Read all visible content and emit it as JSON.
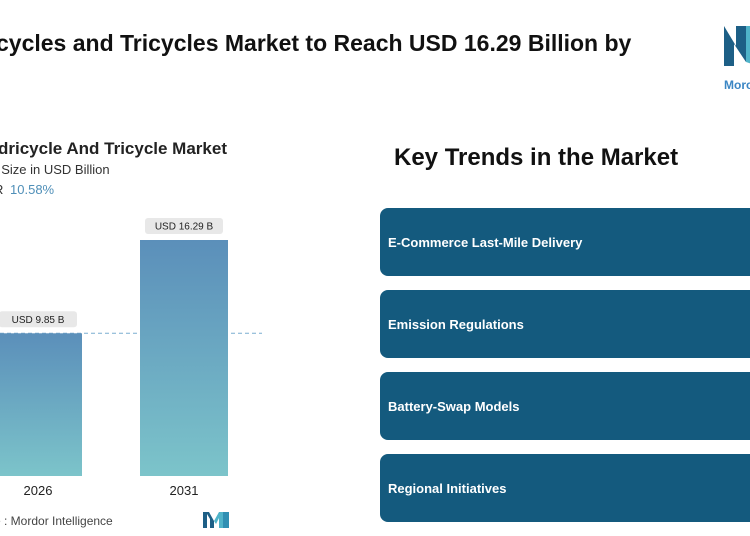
{
  "headline": "cycles and Tricycles Market to Reach USD 16.29 Billion by",
  "logo": {
    "text": "Morc"
  },
  "chart": {
    "title": "dricycle And Tricycle Market",
    "subtitle": "t Size in USD Billion",
    "cagr_label": "R",
    "cagr_value": "10.58%"
  },
  "chart_data": {
    "type": "bar",
    "title": "dricycle And Tricycle Market",
    "ylabel": "t Size in USD Billion",
    "categories": [
      "2026",
      "2031"
    ],
    "values": [
      9.85,
      16.29
    ],
    "data_labels": [
      "USD 9.85 B",
      "USD 16.29 B"
    ],
    "ylim": [
      0,
      16.29
    ],
    "grid": false,
    "reference_line": 9.85,
    "colors": {
      "bar_top": "#5b8fba",
      "bar_bottom": "#7cc4ca",
      "label_bg": "#e8e8e8",
      "reference_line": "#7aaed0"
    }
  },
  "source": "e :  Mordor Intelligence",
  "trends": {
    "title": "Key Trends in the Market",
    "items": [
      {
        "label": "E-Commerce Last-Mile Delivery"
      },
      {
        "label": "Emission Regulations"
      },
      {
        "label": "Battery-Swap Models"
      },
      {
        "label": "Regional Initiatives"
      }
    ],
    "card_color": "#145a7e"
  }
}
